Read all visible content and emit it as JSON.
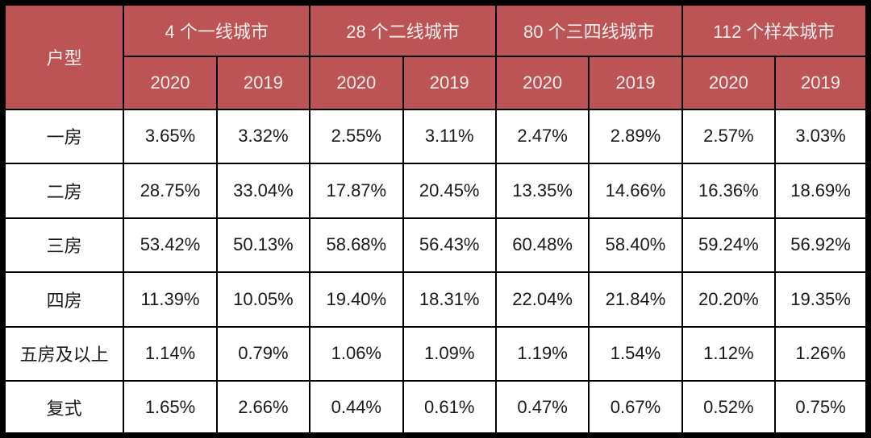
{
  "colors": {
    "header_bg": "#bc5354",
    "header_text": "#f7eeee",
    "border": "#000000",
    "cell_bg": "#ffffff",
    "cell_text": "#1a1a1a"
  },
  "table": {
    "corner_header": "户型",
    "groups": [
      {
        "label": "4 个一线城市"
      },
      {
        "label": "28 个二线城市"
      },
      {
        "label": "80 个三四线城市"
      },
      {
        "label": "112 个样本城市"
      }
    ],
    "year_headers": [
      "2020",
      "2019",
      "2020",
      "2019",
      "2020",
      "2019",
      "2020",
      "2019"
    ],
    "rows": [
      {
        "label": "一房",
        "values": [
          "3.65%",
          "3.32%",
          "2.55%",
          "3.11%",
          "2.47%",
          "2.89%",
          "2.57%",
          "3.03%"
        ]
      },
      {
        "label": "二房",
        "values": [
          "28.75%",
          "33.04%",
          "17.87%",
          "20.45%",
          "13.35%",
          "14.66%",
          "16.36%",
          "18.69%"
        ]
      },
      {
        "label": "三房",
        "values": [
          "53.42%",
          "50.13%",
          "58.68%",
          "56.43%",
          "60.48%",
          "58.40%",
          "59.24%",
          "56.92%"
        ]
      },
      {
        "label": "四房",
        "values": [
          "11.39%",
          "10.05%",
          "19.40%",
          "18.31%",
          "22.04%",
          "21.84%",
          "20.20%",
          "19.35%"
        ]
      },
      {
        "label": "五房及以上",
        "values": [
          "1.14%",
          "0.79%",
          "1.06%",
          "1.09%",
          "1.19%",
          "1.54%",
          "1.12%",
          "1.26%"
        ]
      },
      {
        "label": "复式",
        "values": [
          "1.65%",
          "2.66%",
          "0.44%",
          "0.61%",
          "0.47%",
          "0.67%",
          "0.52%",
          "0.75%"
        ]
      }
    ]
  },
  "chart_data": {
    "type": "table",
    "row_label_header": "户型",
    "row_labels": [
      "一房",
      "二房",
      "三房",
      "四房",
      "五房及以上",
      "复式"
    ],
    "column_groups": [
      {
        "name": "4 个一线城市",
        "sub_columns": [
          "2020",
          "2019"
        ]
      },
      {
        "name": "28 个二线城市",
        "sub_columns": [
          "2020",
          "2019"
        ]
      },
      {
        "name": "80 个三四线城市",
        "sub_columns": [
          "2020",
          "2019"
        ]
      },
      {
        "name": "112 个样本城市",
        "sub_columns": [
          "2020",
          "2019"
        ]
      }
    ],
    "unit": "%",
    "series": [
      {
        "name": "4 个一线城市 2020",
        "values": [
          3.65,
          28.75,
          53.42,
          11.39,
          1.14,
          1.65
        ]
      },
      {
        "name": "4 个一线城市 2019",
        "values": [
          3.32,
          33.04,
          50.13,
          10.05,
          0.79,
          2.66
        ]
      },
      {
        "name": "28 个二线城市 2020",
        "values": [
          2.55,
          17.87,
          58.68,
          19.4,
          1.06,
          0.44
        ]
      },
      {
        "name": "28 个二线城市 2019",
        "values": [
          3.11,
          20.45,
          56.43,
          18.31,
          1.09,
          0.61
        ]
      },
      {
        "name": "80 个三四线城市 2020",
        "values": [
          2.47,
          13.35,
          60.48,
          22.04,
          1.19,
          0.47
        ]
      },
      {
        "name": "80 个三四线城市 2019",
        "values": [
          2.89,
          14.66,
          58.4,
          21.84,
          1.54,
          0.67
        ]
      },
      {
        "name": "112 个样本城市 2020",
        "values": [
          2.57,
          16.36,
          59.24,
          20.2,
          1.12,
          0.52
        ]
      },
      {
        "name": "112 个样本城市 2019",
        "values": [
          3.03,
          18.69,
          56.92,
          19.35,
          1.26,
          0.75
        ]
      }
    ]
  }
}
